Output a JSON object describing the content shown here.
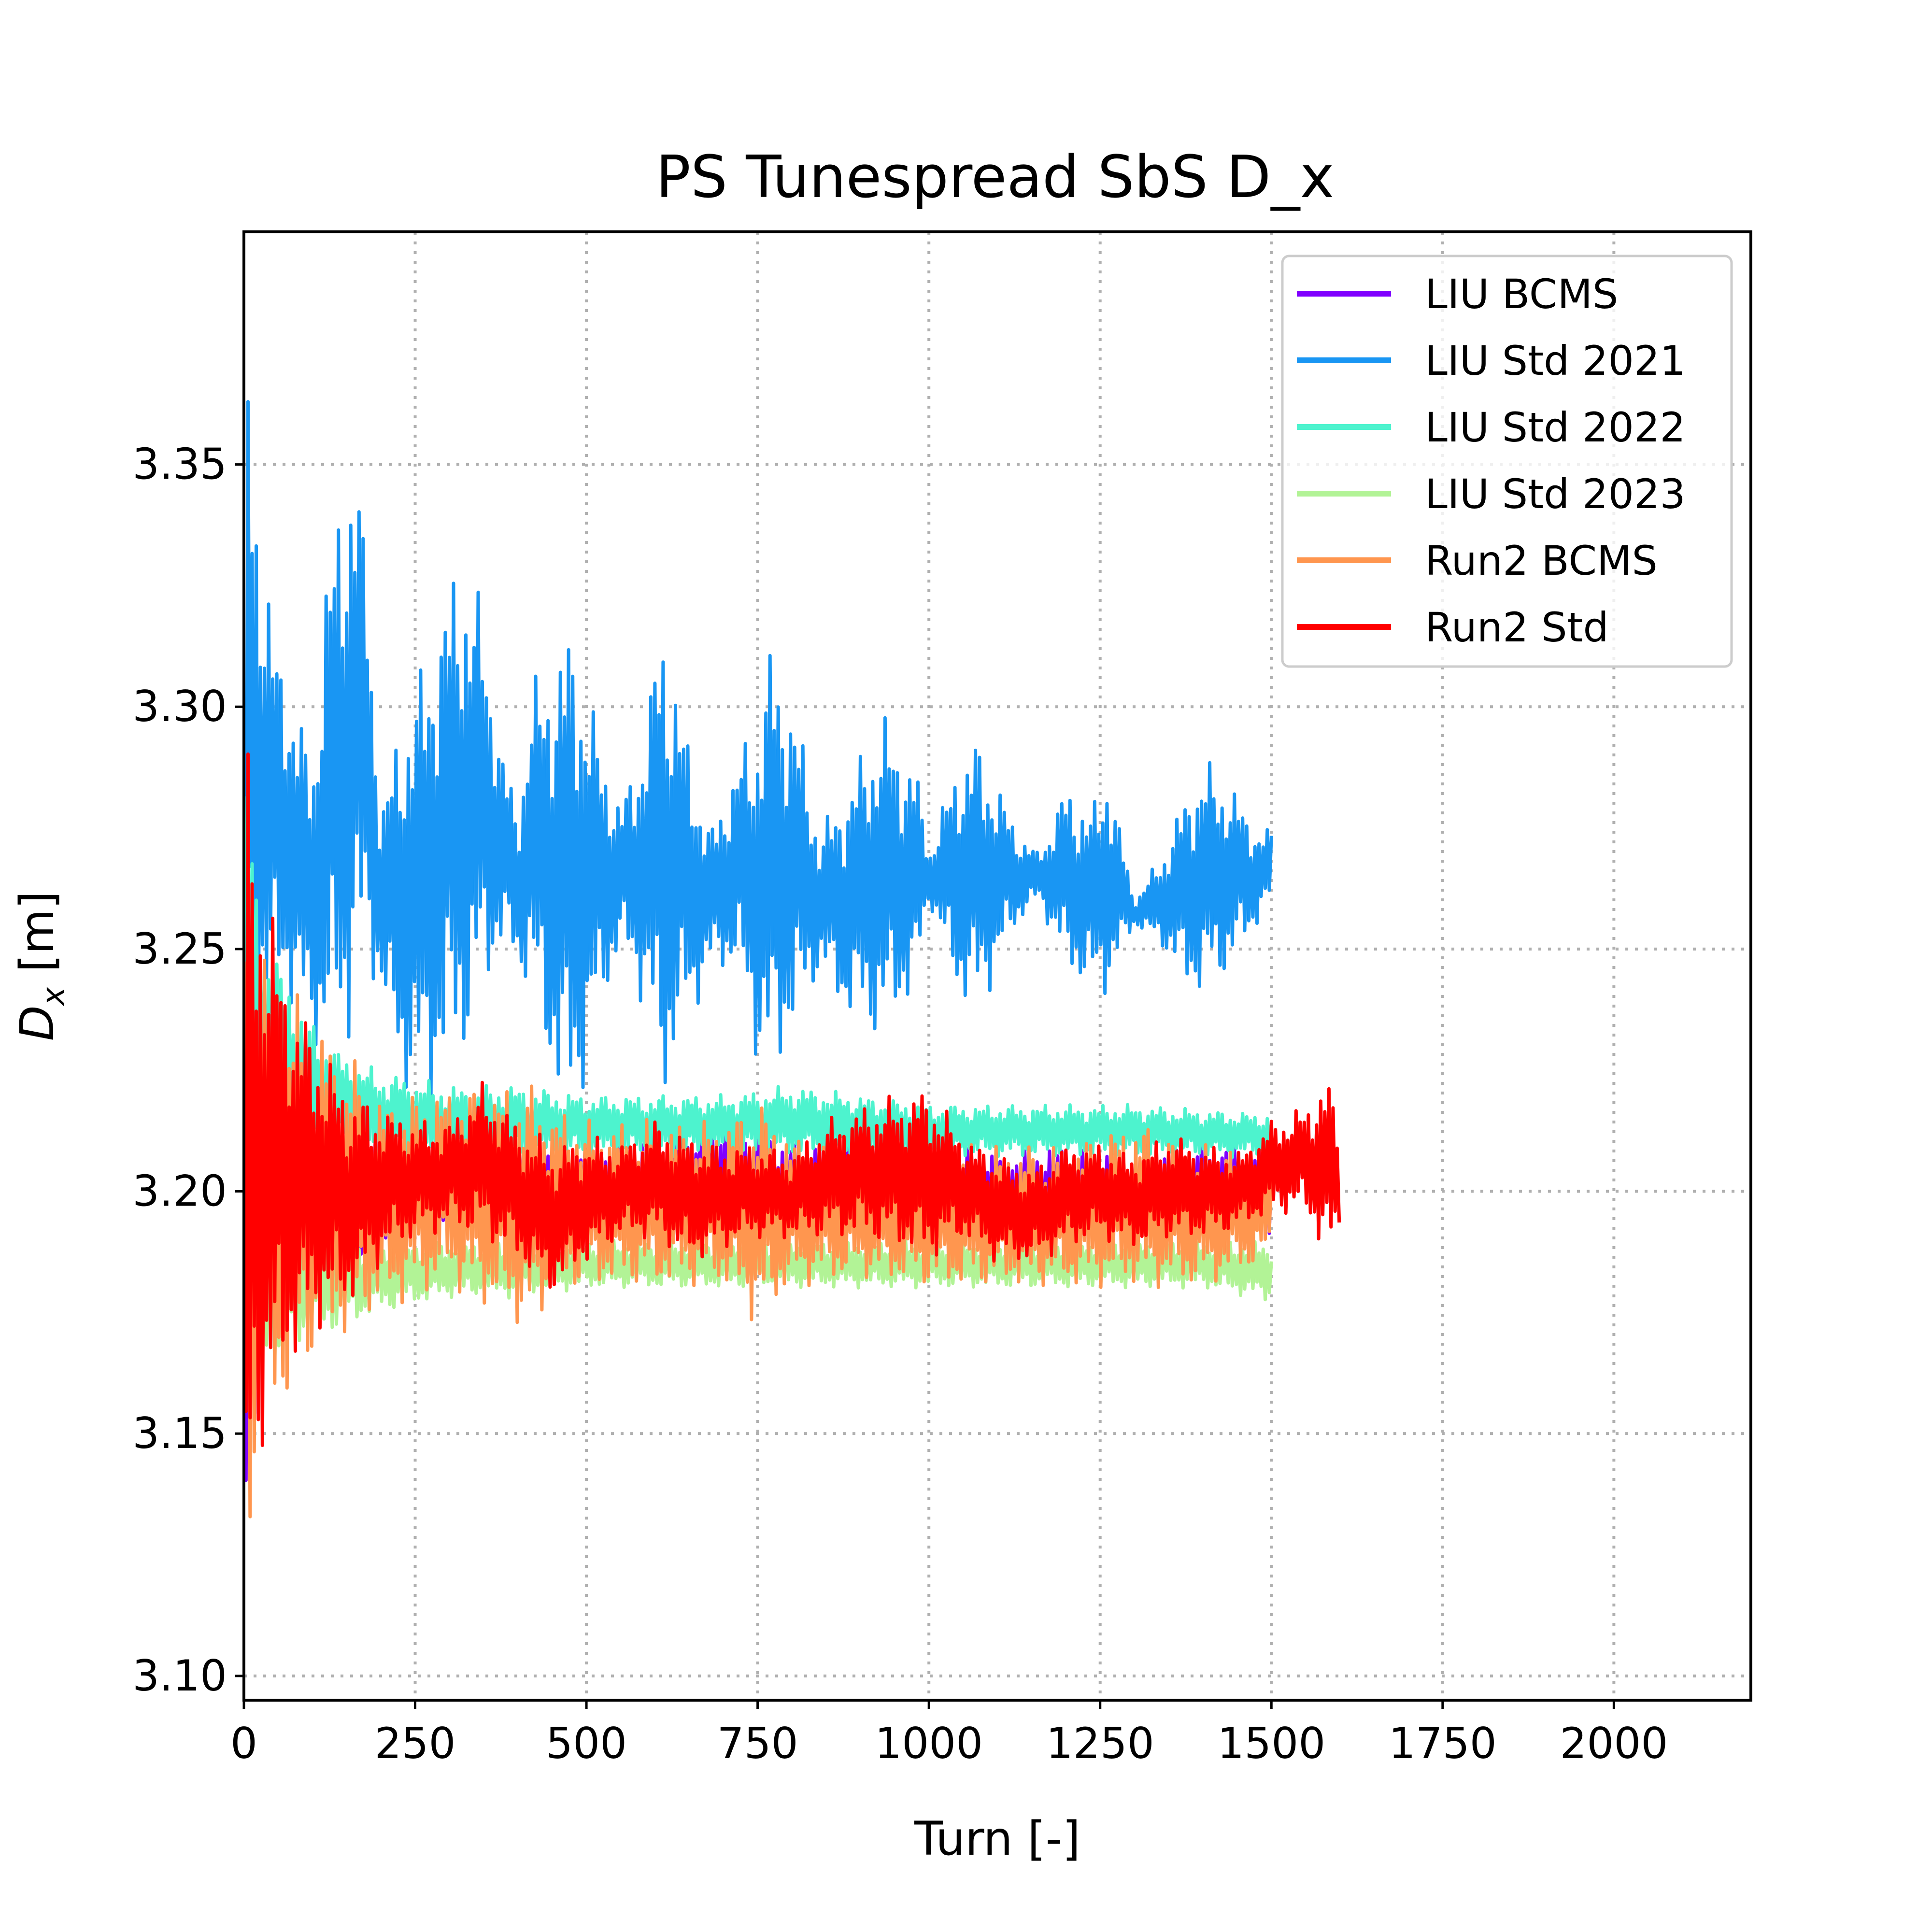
{
  "chart_data": {
    "type": "line",
    "title": "PS Tunespread SbS D_x",
    "xlabel": "Turn [-]",
    "ylabel": {
      "base": "D",
      "sub": "x",
      "rest": " [m]"
    },
    "xlim": [
      0,
      2200
    ],
    "ylim": [
      3.095,
      3.398
    ],
    "xticks": [
      0,
      250,
      500,
      750,
      1000,
      1250,
      1500,
      1750,
      2000
    ],
    "yticks": [
      3.1,
      3.15,
      3.2,
      3.25,
      3.3,
      3.35
    ],
    "ytick_labels": [
      "3.10",
      "3.15",
      "3.20",
      "3.25",
      "3.30",
      "3.35"
    ],
    "grid": true,
    "legend_position": "top-right",
    "series": [
      {
        "name": "LIU BCMS",
        "color": "#8000ff",
        "x_end": 1500,
        "envelope": {
          "x": [
            0,
            50,
            100,
            150,
            200,
            250,
            300,
            400,
            500,
            600,
            700,
            800,
            900,
            1000,
            1100,
            1200,
            1300,
            1400,
            1500
          ],
          "upper": [
            3.27,
            3.235,
            3.225,
            3.22,
            3.215,
            3.213,
            3.212,
            3.211,
            3.21,
            3.21,
            3.217,
            3.21,
            3.212,
            3.21,
            3.208,
            3.21,
            3.208,
            3.21,
            3.21
          ],
          "lower": [
            3.13,
            3.165,
            3.175,
            3.18,
            3.185,
            3.188,
            3.19,
            3.19,
            3.19,
            3.19,
            3.19,
            3.19,
            3.192,
            3.19,
            3.19,
            3.19,
            3.19,
            3.19,
            3.19
          ]
        }
      },
      {
        "name": "LIU Std 2021",
        "color": "#1996f3",
        "x_end": 1500,
        "envelope": {
          "x": [
            0,
            5,
            20,
            40,
            60,
            80,
            100,
            120,
            150,
            160,
            180,
            200,
            230,
            260,
            290,
            320,
            350,
            380,
            400,
            420,
            460,
            480,
            510,
            550,
            590,
            610,
            640,
            680,
            720,
            750,
            770,
            800,
            840,
            880,
            930,
            980,
            1000,
            1040,
            1070,
            1100,
            1130,
            1160,
            1200,
            1240,
            1260,
            1300,
            1340,
            1380,
            1400,
            1440,
            1480,
            1500
          ],
          "upper": [
            3.27,
            3.385,
            3.35,
            3.32,
            3.31,
            3.3,
            3.29,
            3.33,
            3.355,
            3.36,
            3.33,
            3.28,
            3.3,
            3.31,
            3.325,
            3.335,
            3.32,
            3.29,
            3.28,
            3.305,
            3.315,
            3.32,
            3.3,
            3.28,
            3.3,
            3.325,
            3.3,
            3.275,
            3.29,
            3.3,
            3.315,
            3.305,
            3.275,
            3.285,
            3.3,
            3.29,
            3.27,
            3.29,
            3.295,
            3.285,
            3.275,
            3.27,
            3.285,
            3.28,
            3.29,
            3.26,
            3.27,
            3.285,
            3.29,
            3.285,
            3.275,
            3.275
          ],
          "lower": [
            3.19,
            3.22,
            3.225,
            3.235,
            3.24,
            3.235,
            3.23,
            3.225,
            3.225,
            3.24,
            3.245,
            3.24,
            3.22,
            3.215,
            3.22,
            3.225,
            3.24,
            3.25,
            3.245,
            3.24,
            3.215,
            3.21,
            3.23,
            3.25,
            3.235,
            3.215,
            3.23,
            3.245,
            3.245,
            3.225,
            3.22,
            3.23,
            3.245,
            3.235,
            3.23,
            3.24,
            3.26,
            3.24,
            3.235,
            3.245,
            3.255,
            3.26,
            3.245,
            3.24,
            3.24,
            3.255,
            3.25,
            3.24,
            3.24,
            3.245,
            3.255,
            3.26
          ]
        }
      },
      {
        "name": "LIU Std 2022",
        "color": "#4df3ce",
        "x_end": 1500,
        "envelope": {
          "x": [
            0,
            20,
            60,
            100,
            150,
            200,
            300,
            400,
            500,
            600,
            700,
            800,
            900,
            1000,
            1100,
            1200,
            1300,
            1400,
            1500
          ],
          "upper": [
            3.29,
            3.26,
            3.245,
            3.235,
            3.228,
            3.225,
            3.222,
            3.222,
            3.22,
            3.22,
            3.22,
            3.222,
            3.22,
            3.218,
            3.218,
            3.218,
            3.218,
            3.217,
            3.216
          ],
          "lower": [
            3.22,
            3.21,
            3.208,
            3.207,
            3.207,
            3.206,
            3.206,
            3.206,
            3.207,
            3.207,
            3.207,
            3.207,
            3.207,
            3.207,
            3.207,
            3.207,
            3.207,
            3.207,
            3.207
          ]
        }
      },
      {
        "name": "LIU Std 2023",
        "color": "#b2f396",
        "x_end": 1500,
        "envelope": {
          "x": [
            0,
            30,
            80,
            150,
            200,
            300,
            400,
            500,
            600,
            700,
            800,
            900,
            1000,
            1100,
            1200,
            1300,
            1400,
            1500
          ],
          "upper": [
            3.22,
            3.2,
            3.195,
            3.192,
            3.19,
            3.19,
            3.19,
            3.19,
            3.19,
            3.19,
            3.19,
            3.19,
            3.19,
            3.19,
            3.19,
            3.19,
            3.19,
            3.19
          ],
          "lower": [
            3.15,
            3.162,
            3.168,
            3.172,
            3.175,
            3.178,
            3.178,
            3.18,
            3.18,
            3.18,
            3.18,
            3.18,
            3.18,
            3.18,
            3.18,
            3.18,
            3.18,
            3.177
          ]
        }
      },
      {
        "name": "Run2 BCMS",
        "color": "#ff964f",
        "x_end": 1500,
        "envelope": {
          "x": [
            0,
            30,
            80,
            150,
            200,
            300,
            420,
            450,
            500,
            600,
            700,
            750,
            800,
            900,
            1000,
            1100,
            1200,
            1300,
            1400,
            1500
          ],
          "upper": [
            3.28,
            3.255,
            3.24,
            3.23,
            3.22,
            3.222,
            3.223,
            3.218,
            3.215,
            3.215,
            3.215,
            3.22,
            3.212,
            3.21,
            3.21,
            3.21,
            3.21,
            3.215,
            3.21,
            3.21
          ],
          "lower": [
            3.12,
            3.145,
            3.16,
            3.17,
            3.175,
            3.18,
            3.17,
            3.178,
            3.18,
            3.18,
            3.18,
            3.172,
            3.18,
            3.182,
            3.18,
            3.18,
            3.18,
            3.18,
            3.18,
            3.185
          ]
        }
      },
      {
        "name": "Run2 Std",
        "color": "#ff0000",
        "x_end": 1600,
        "envelope": {
          "x": [
            0,
            5,
            20,
            40,
            60,
            80,
            100,
            120,
            150,
            200,
            250,
            300,
            350,
            400,
            450,
            500,
            550,
            600,
            650,
            700,
            750,
            800,
            850,
            900,
            950,
            1000,
            1050,
            1100,
            1150,
            1200,
            1250,
            1300,
            1350,
            1400,
            1450,
            1500,
            1550,
            1580,
            1600
          ],
          "upper": [
            3.2,
            3.295,
            3.275,
            3.26,
            3.25,
            3.24,
            3.235,
            3.23,
            3.222,
            3.218,
            3.215,
            3.215,
            3.223,
            3.215,
            3.21,
            3.212,
            3.21,
            3.215,
            3.212,
            3.21,
            3.21,
            3.208,
            3.215,
            3.218,
            3.22,
            3.222,
            3.212,
            3.208,
            3.205,
            3.21,
            3.21,
            3.208,
            3.212,
            3.21,
            3.208,
            3.215,
            3.218,
            3.225,
            3.215
          ],
          "lower": [
            3.105,
            3.12,
            3.14,
            3.15,
            3.16,
            3.165,
            3.17,
            3.172,
            3.175,
            3.185,
            3.19,
            3.192,
            3.19,
            3.185,
            3.178,
            3.185,
            3.19,
            3.19,
            3.185,
            3.188,
            3.19,
            3.19,
            3.19,
            3.19,
            3.188,
            3.185,
            3.19,
            3.185,
            3.185,
            3.188,
            3.19,
            3.188,
            3.19,
            3.19,
            3.192,
            3.195,
            3.195,
            3.185,
            3.19
          ]
        }
      }
    ]
  }
}
